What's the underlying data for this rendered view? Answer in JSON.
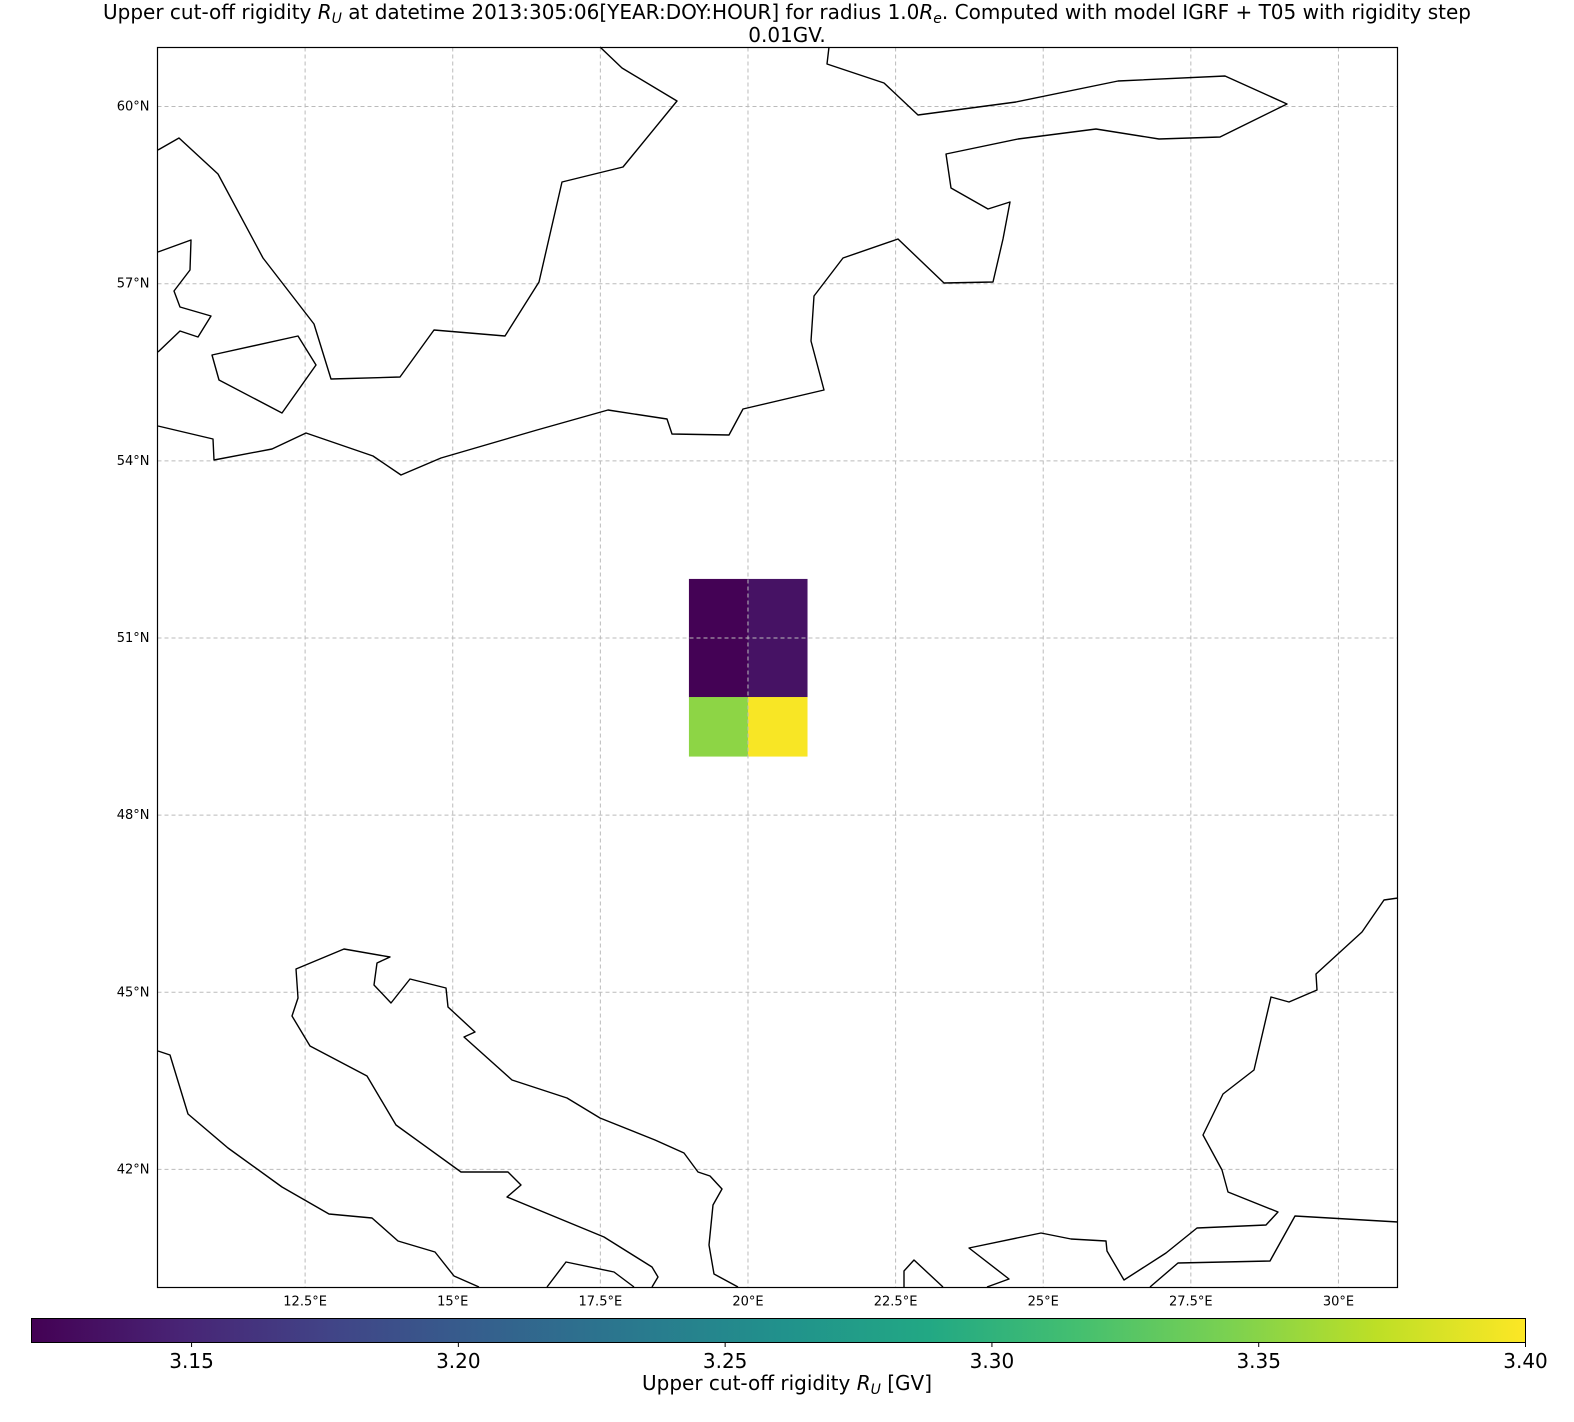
{
  "title": {
    "line1_prefix": "Upper cut-off rigidity ",
    "symbol_main": "R",
    "symbol_sub": "U",
    "line1_mid": " at datetime 2013:305:06[YEAR:DOY:HOUR] for radius 1.0",
    "radius_sub": "e",
    "line1_suffix": ". Computed with model IGRF + T05 with rigidity step",
    "line2": "0.01GV."
  },
  "map": {
    "lon_range": [
      10.0,
      31.0
    ],
    "lat_range": [
      40.0,
      61.0
    ],
    "lon_ticks": [
      12.5,
      15,
      17.5,
      20,
      22.5,
      25,
      27.5,
      30
    ],
    "lon_tick_labels": [
      "12.5°E",
      "15°E",
      "17.5°E",
      "20°E",
      "22.5°E",
      "25°E",
      "27.5°E",
      "30°E"
    ],
    "lat_ticks": [
      42,
      45,
      48,
      51,
      54,
      57,
      60
    ],
    "lat_tick_labels": [
      "42°N",
      "45°N",
      "48°N",
      "51°N",
      "54°N",
      "57°N",
      "60°N"
    ],
    "gridlines": "dashed",
    "cells": [
      {
        "lon": 19.5,
        "lat": 51.5,
        "value": 3.121
      },
      {
        "lon": 20.5,
        "lat": 51.5,
        "value": 3.134
      },
      {
        "lon": 19.5,
        "lat": 50.5,
        "value": 3.121
      },
      {
        "lon": 20.5,
        "lat": 50.5,
        "value": 3.134
      },
      {
        "lon": 19.5,
        "lat": 49.5,
        "value": 3.352
      },
      {
        "lon": 20.5,
        "lat": 49.5,
        "value": 3.398
      }
    ]
  },
  "colorbar": {
    "colormap": "viridis",
    "range": [
      3.12,
      3.4
    ],
    "ticks": [
      3.15,
      3.2,
      3.25,
      3.3,
      3.35,
      3.4
    ],
    "tick_labels": [
      "3.15",
      "3.20",
      "3.25",
      "3.30",
      "3.35",
      "3.40"
    ],
    "label_prefix": "Upper cut-off rigidity ",
    "label_symbol": "R",
    "label_sub": "U",
    "label_suffix": " [GV]"
  }
}
